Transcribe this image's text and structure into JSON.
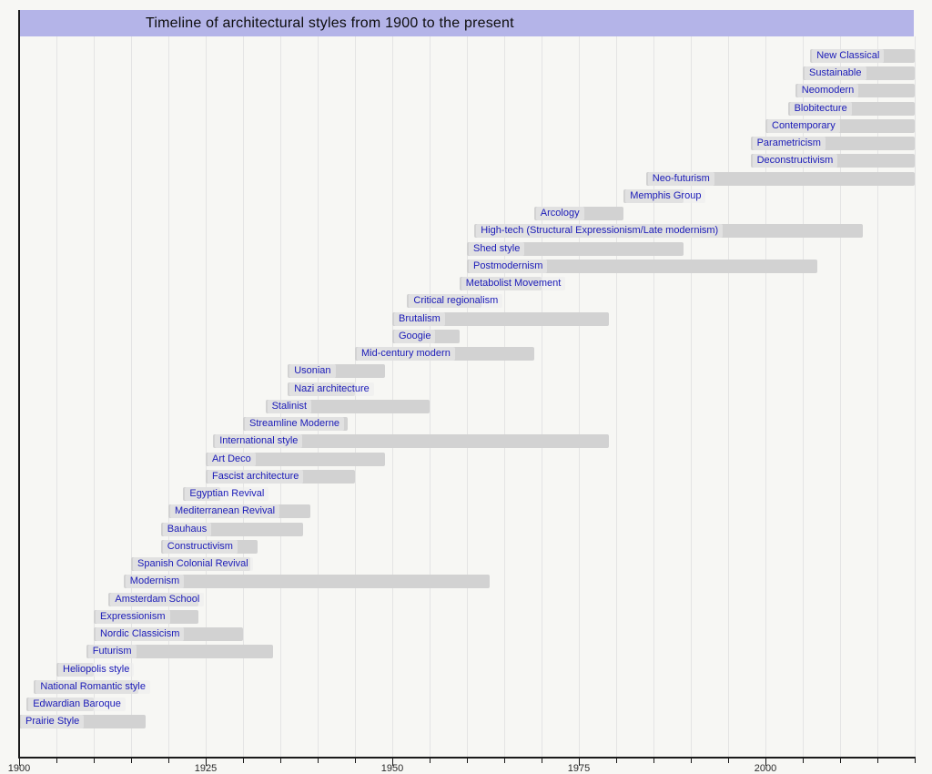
{
  "title": "Timeline of architectural styles from 1900 to the present",
  "colors": {
    "page_background": "#f7f7f4",
    "header_background": "#b4b4e8",
    "bar_fill": "#d2d2d2",
    "label_text": "#1a1ab8",
    "gridline": "#e4e4e4",
    "axis_line": "#1a1a1a",
    "tick_text": "#2a2a2a",
    "title_text": "#0d0d0d"
  },
  "chart_data": {
    "type": "bar",
    "subtype": "timeline-gantt",
    "title": "Timeline of architectural styles from 1900 to the present",
    "xlabel": "",
    "ylabel": "",
    "grid": true,
    "legend": false,
    "axis": {
      "min": 1900,
      "max": 2020,
      "minor_tick_interval": 5,
      "major_ticks": [
        1900,
        1925,
        1950,
        1975,
        2000
      ],
      "major_tick_labels": [
        "1900",
        "1925",
        "1950",
        "1975",
        "2000"
      ]
    },
    "styles": [
      {
        "label": "New Classical",
        "start": 2006,
        "end": 2020,
        "to_present": true
      },
      {
        "label": "Sustainable",
        "start": 2005,
        "end": 2020,
        "to_present": true
      },
      {
        "label": "Neomodern",
        "start": 2004,
        "end": 2020,
        "to_present": true
      },
      {
        "label": "Blobitecture",
        "start": 2003,
        "end": 2020,
        "to_present": true
      },
      {
        "label": "Contemporary",
        "start": 2000,
        "end": 2020,
        "to_present": true
      },
      {
        "label": "Parametricism",
        "start": 1998,
        "end": 2020,
        "to_present": true
      },
      {
        "label": "Deconstructivism",
        "start": 1998,
        "end": 2020,
        "to_present": true
      },
      {
        "label": "Neo-futurism",
        "start": 1984,
        "end": 2020,
        "to_present": true
      },
      {
        "label": "Memphis Group",
        "start": 1981,
        "end": 1989,
        "to_present": false
      },
      {
        "label": "Arcology",
        "start": 1969,
        "end": 1981,
        "to_present": false
      },
      {
        "label": "High-tech (Structural Expressionism/Late modernism)",
        "start": 1961,
        "end": 2013,
        "to_present": false
      },
      {
        "label": "Shed style",
        "start": 1960,
        "end": 1989,
        "to_present": false
      },
      {
        "label": "Postmodernism",
        "start": 1960,
        "end": 2007,
        "to_present": false
      },
      {
        "label": "Metabolist Movement",
        "start": 1959,
        "end": 1970,
        "to_present": false
      },
      {
        "label": "Critical regionalism",
        "start": 1952,
        "end": 1962,
        "to_present": false
      },
      {
        "label": "Brutalism",
        "start": 1950,
        "end": 1979,
        "to_present": false
      },
      {
        "label": "Googie",
        "start": 1950,
        "end": 1959,
        "to_present": false
      },
      {
        "label": "Mid-century modern",
        "start": 1945,
        "end": 1969,
        "to_present": false
      },
      {
        "label": "Usonian",
        "start": 1936,
        "end": 1949,
        "to_present": false
      },
      {
        "label": "Nazi architecture",
        "start": 1936,
        "end": 1945,
        "to_present": false
      },
      {
        "label": "Stalinist",
        "start": 1933,
        "end": 1955,
        "to_present": false
      },
      {
        "label": "Streamline Moderne",
        "start": 1930,
        "end": 1944,
        "to_present": false
      },
      {
        "label": "International style",
        "start": 1926,
        "end": 1979,
        "to_present": false
      },
      {
        "label": "Art Deco",
        "start": 1925,
        "end": 1949,
        "to_present": false
      },
      {
        "label": "Fascist architecture",
        "start": 1925,
        "end": 1945,
        "to_present": false
      },
      {
        "label": "Egyptian Revival",
        "start": 1922,
        "end": 1927,
        "to_present": false
      },
      {
        "label": "Mediterranean Revival",
        "start": 1920,
        "end": 1939,
        "to_present": false
      },
      {
        "label": "Bauhaus",
        "start": 1919,
        "end": 1938,
        "to_present": false
      },
      {
        "label": "Constructivism",
        "start": 1919,
        "end": 1932,
        "to_present": false
      },
      {
        "label": "Spanish Colonial Revival",
        "start": 1915,
        "end": 1931,
        "to_present": false
      },
      {
        "label": "Modernism",
        "start": 1914,
        "end": 1963,
        "to_present": false
      },
      {
        "label": "Amsterdam School",
        "start": 1912,
        "end": 1924,
        "to_present": false
      },
      {
        "label": "Expressionism",
        "start": 1910,
        "end": 1924,
        "to_present": false
      },
      {
        "label": "Nordic Classicism",
        "start": 1910,
        "end": 1930,
        "to_present": false
      },
      {
        "label": "Futurism",
        "start": 1909,
        "end": 1934,
        "to_present": false
      },
      {
        "label": "Heliopolis style",
        "start": 1905,
        "end": 1910,
        "to_present": false
      },
      {
        "label": "National Romantic style",
        "start": 1902,
        "end": 1916,
        "to_present": false
      },
      {
        "label": "Edwardian Baroque",
        "start": 1901,
        "end": 1910,
        "to_present": false
      },
      {
        "label": "Prairie Style",
        "start": 1900,
        "end": 1917,
        "to_present": false
      }
    ]
  }
}
